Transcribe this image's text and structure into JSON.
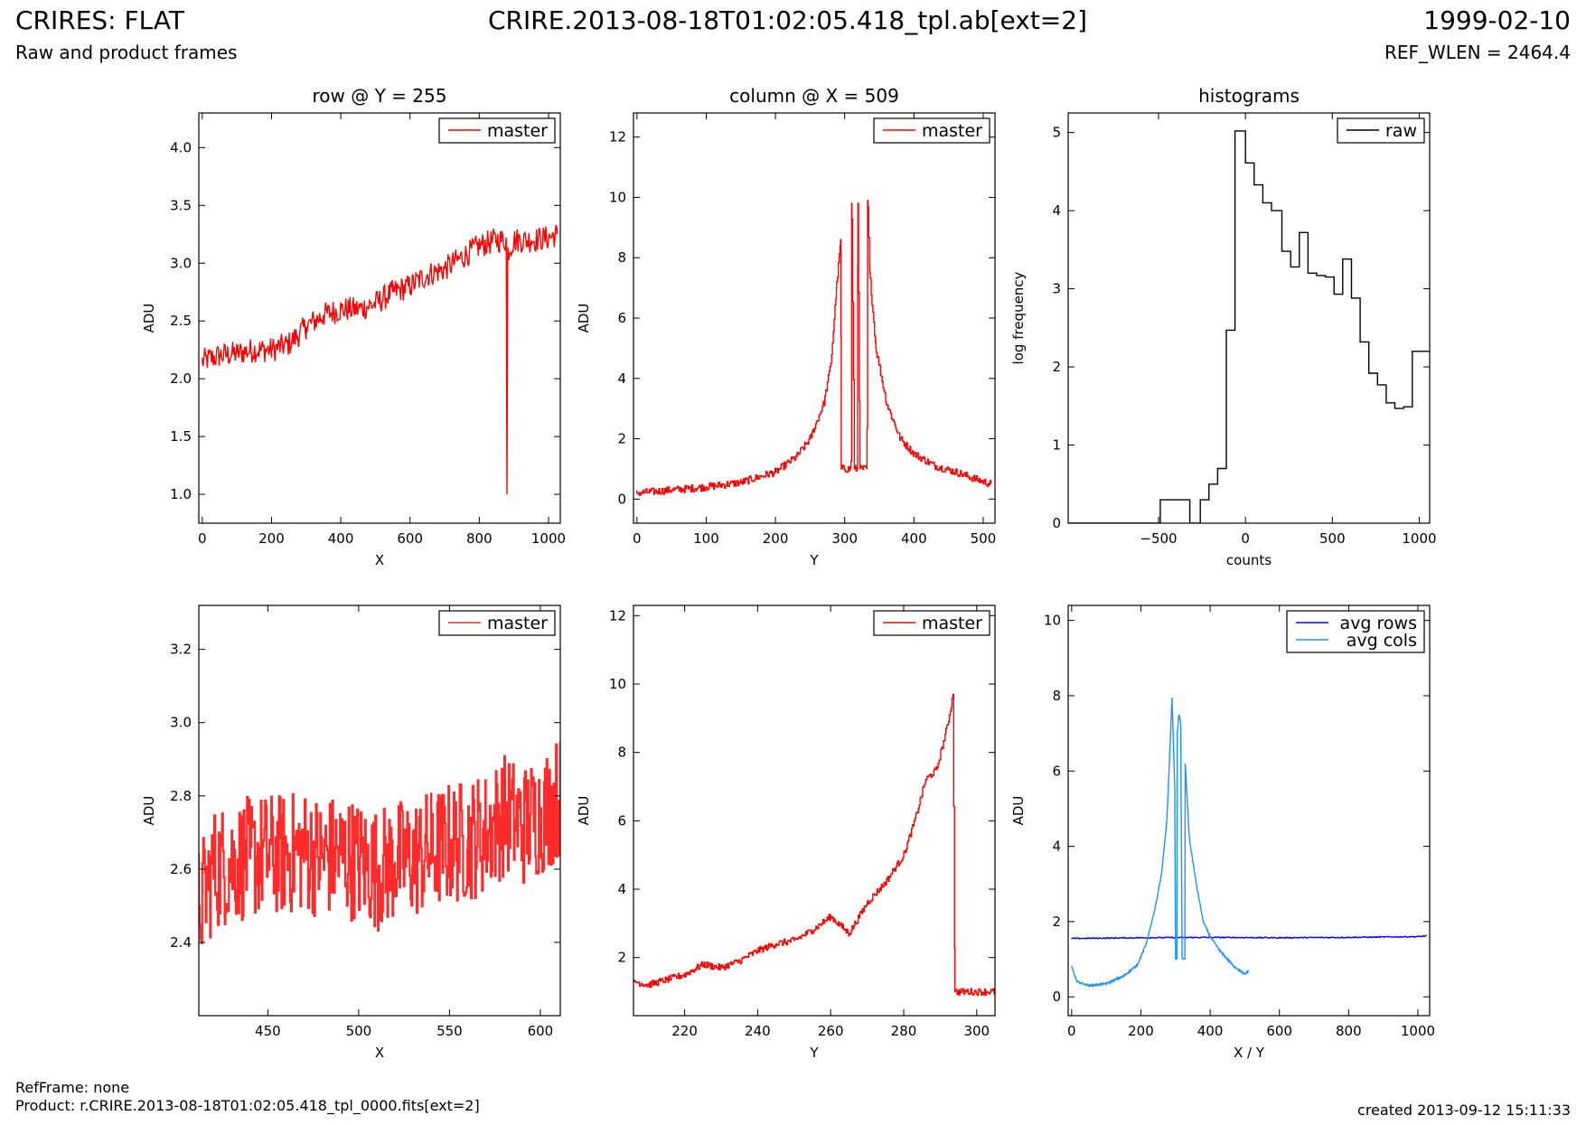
{
  "header": {
    "left_title": "CRIRES: FLAT",
    "left_subtitle": "Raw and product frames",
    "center_title": "CRIRE.2013-08-18T01:02:05.418_tpl.ab[ext=2]",
    "right_title": "1999-02-10",
    "right_subtitle": "REF_WLEN = 2464.4"
  },
  "footer": {
    "ref_frame": "RefFrame: none",
    "product": "Product: r.CRIRE.2013-08-18T01:02:05.418_tpl_0000.fits[ext=2]",
    "created": "created 2013-09-12 15:11:33"
  },
  "colors": {
    "master": "#ff0000",
    "raw": "#000000",
    "avg_rows": "#0000ff",
    "avg_cols": "#1e90ff"
  },
  "chart_data": [
    {
      "type": "line",
      "title": "row @ Y = 255",
      "xlabel": "X",
      "ylabel": "ADU",
      "xlim": [
        -10,
        1034
      ],
      "ylim": [
        0.75,
        4.3
      ],
      "xticks": [
        0,
        200,
        400,
        600,
        800,
        1000
      ],
      "yticks": [
        1.0,
        1.5,
        2.0,
        2.5,
        3.0,
        3.5,
        4.0
      ],
      "yfmt": 1,
      "legend_position": "top-right",
      "series": [
        {
          "name": "master",
          "color": "#ff0000",
          "points": [
            [
              0,
              2.15
            ],
            [
              50,
              2.2
            ],
            [
              100,
              2.22
            ],
            [
              150,
              2.25
            ],
            [
              200,
              2.25
            ],
            [
              250,
              2.3
            ],
            [
              300,
              2.45
            ],
            [
              350,
              2.55
            ],
            [
              400,
              2.6
            ],
            [
              450,
              2.6
            ],
            [
              500,
              2.65
            ],
            [
              550,
              2.75
            ],
            [
              600,
              2.8
            ],
            [
              650,
              2.9
            ],
            [
              700,
              2.95
            ],
            [
              750,
              3.05
            ],
            [
              800,
              3.15
            ],
            [
              850,
              3.2
            ],
            [
              878,
              3.2
            ],
            [
              880,
              1.0
            ],
            [
              882,
              3.1
            ],
            [
              900,
              3.2
            ],
            [
              950,
              3.2
            ],
            [
              1000,
              3.22
            ],
            [
              1024,
              3.25
            ]
          ],
          "noise": 0.22
        }
      ]
    },
    {
      "type": "line",
      "title": "column @ X = 509",
      "xlabel": "Y",
      "ylabel": "ADU",
      "xlim": [
        -5,
        517
      ],
      "ylim": [
        -0.8,
        12.8
      ],
      "xticks": [
        0,
        100,
        200,
        300,
        400,
        500
      ],
      "yticks": [
        0,
        2,
        4,
        6,
        8,
        10,
        12
      ],
      "yfmt": 0,
      "legend_position": "top-right",
      "series": [
        {
          "name": "master",
          "color": "#ff0000",
          "step": true,
          "points": [
            [
              0,
              0.2
            ],
            [
              50,
              0.3
            ],
            [
              100,
              0.4
            ],
            [
              150,
              0.55
            ],
            [
              200,
              0.9
            ],
            [
              230,
              1.4
            ],
            [
              250,
              2.0
            ],
            [
              270,
              3.2
            ],
            [
              280,
              4.5
            ],
            [
              288,
              7.0
            ],
            [
              294,
              8.6
            ],
            [
              295,
              1.0
            ],
            [
              309,
              1.0
            ],
            [
              310,
              9.8
            ],
            [
              314,
              1.0
            ],
            [
              318,
              1.0
            ],
            [
              319,
              9.8
            ],
            [
              322,
              1.0
            ],
            [
              332,
              1.0
            ],
            [
              333,
              9.9
            ],
            [
              336,
              7.5
            ],
            [
              345,
              5.0
            ],
            [
              360,
              3.2
            ],
            [
              380,
              2.0
            ],
            [
              400,
              1.5
            ],
            [
              430,
              1.1
            ],
            [
              460,
              0.9
            ],
            [
              490,
              0.65
            ],
            [
              511,
              0.5
            ]
          ],
          "noise": 0.25
        }
      ]
    },
    {
      "type": "line",
      "title": "histograms",
      "xlabel": "counts",
      "ylabel": "log frequency",
      "xlim": [
        -1020,
        1060
      ],
      "ylim": [
        0,
        5.25
      ],
      "xticks": [
        -500,
        0,
        500,
        1000
      ],
      "xtick_labels": [
        "−500",
        "0",
        "500",
        "1000"
      ],
      "yticks": [
        0,
        1,
        2,
        3,
        4,
        5
      ],
      "yfmt": 0,
      "legend_position": "top-right",
      "series": [
        {
          "name": "raw",
          "color": "#000000",
          "step": true,
          "points": [
            [
              -1020,
              0
            ],
            [
              -490,
              0
            ],
            [
              -490,
              0.3
            ],
            [
              -320,
              0.3
            ],
            [
              -320,
              0
            ],
            [
              -260,
              0
            ],
            [
              -260,
              0.3
            ],
            [
              -210,
              0.3
            ],
            [
              -210,
              0.5
            ],
            [
              -160,
              0.5
            ],
            [
              -160,
              0.7
            ],
            [
              -110,
              0.7
            ],
            [
              -110,
              2.47
            ],
            [
              -60,
              2.47
            ],
            [
              -60,
              5.02
            ],
            [
              0,
              5.02
            ],
            [
              0,
              4.61
            ],
            [
              50,
              4.61
            ],
            [
              50,
              4.33
            ],
            [
              100,
              4.33
            ],
            [
              100,
              4.1
            ],
            [
              150,
              4.1
            ],
            [
              150,
              4.0
            ],
            [
              210,
              4.0
            ],
            [
              210,
              3.48
            ],
            [
              260,
              3.48
            ],
            [
              260,
              3.28
            ],
            [
              310,
              3.28
            ],
            [
              310,
              3.72
            ],
            [
              360,
              3.72
            ],
            [
              360,
              3.2
            ],
            [
              410,
              3.2
            ],
            [
              410,
              3.17
            ],
            [
              460,
              3.17
            ],
            [
              460,
              3.15
            ],
            [
              510,
              3.15
            ],
            [
              510,
              2.93
            ],
            [
              560,
              2.93
            ],
            [
              560,
              3.38
            ],
            [
              610,
              3.38
            ],
            [
              610,
              2.88
            ],
            [
              660,
              2.88
            ],
            [
              660,
              2.32
            ],
            [
              710,
              2.32
            ],
            [
              710,
              1.92
            ],
            [
              760,
              1.92
            ],
            [
              760,
              1.77
            ],
            [
              810,
              1.77
            ],
            [
              810,
              1.54
            ],
            [
              860,
              1.54
            ],
            [
              860,
              1.47
            ],
            [
              910,
              1.47
            ],
            [
              910,
              1.49
            ],
            [
              960,
              1.49
            ],
            [
              960,
              2.2
            ],
            [
              1060,
              2.2
            ]
          ]
        }
      ]
    },
    {
      "type": "line",
      "xlabel": "X",
      "ylabel": "ADU",
      "xlim": [
        412,
        611
      ],
      "ylim": [
        2.2,
        3.32
      ],
      "xticks": [
        450,
        500,
        550,
        600
      ],
      "yticks": [
        2.4,
        2.6,
        2.8,
        3.0,
        3.2
      ],
      "yfmt": 1,
      "legend_position": "top-right",
      "series": [
        {
          "name": "master",
          "color": "#ff2a2a",
          "step": true,
          "width": 2.2,
          "points": [
            [
              412,
              2.5
            ],
            [
              420,
              2.6
            ],
            [
              430,
              2.62
            ],
            [
              440,
              2.63
            ],
            [
              450,
              2.64
            ],
            [
              460,
              2.64
            ],
            [
              470,
              2.65
            ],
            [
              480,
              2.63
            ],
            [
              490,
              2.64
            ],
            [
              500,
              2.62
            ],
            [
              510,
              2.6
            ],
            [
              520,
              2.62
            ],
            [
              530,
              2.63
            ],
            [
              540,
              2.65
            ],
            [
              550,
              2.67
            ],
            [
              560,
              2.68
            ],
            [
              570,
              2.7
            ],
            [
              580,
              2.75
            ],
            [
              590,
              2.72
            ],
            [
              600,
              2.75
            ],
            [
              611,
              2.8
            ]
          ],
          "noise": 0.34
        }
      ]
    },
    {
      "type": "line",
      "xlabel": "Y",
      "ylabel": "ADU",
      "xlim": [
        206,
        305
      ],
      "ylim": [
        0.3,
        12.3
      ],
      "xticks": [
        220,
        240,
        260,
        280,
        300
      ],
      "yticks": [
        2,
        4,
        6,
        8,
        10,
        12
      ],
      "yfmt": 0,
      "legend_position": "top-right",
      "series": [
        {
          "name": "master",
          "color": "#ff0000",
          "step": true,
          "points": [
            [
              206,
              1.3
            ],
            [
              210,
              1.2
            ],
            [
              215,
              1.35
            ],
            [
              220,
              1.5
            ],
            [
              225,
              1.8
            ],
            [
              230,
              1.7
            ],
            [
              235,
              1.9
            ],
            [
              240,
              2.2
            ],
            [
              245,
              2.4
            ],
            [
              250,
              2.5
            ],
            [
              255,
              2.8
            ],
            [
              260,
              3.2
            ],
            [
              265,
              2.7
            ],
            [
              270,
              3.6
            ],
            [
              275,
              4.2
            ],
            [
              280,
              5.0
            ],
            [
              283,
              6.0
            ],
            [
              286,
              7.2
            ],
            [
              289,
              7.5
            ],
            [
              292,
              8.8
            ],
            [
              293.5,
              9.7
            ],
            [
              294,
              1.0
            ],
            [
              305,
              1.0
            ]
          ],
          "noise": 0.2
        }
      ]
    },
    {
      "type": "line",
      "xlabel": "X / Y",
      "ylabel": "ADU",
      "xlim": [
        -10,
        1034
      ],
      "ylim": [
        -0.5,
        10.4
      ],
      "xticks": [
        0,
        200,
        400,
        600,
        800,
        1000
      ],
      "yticks": [
        0,
        2,
        4,
        6,
        8,
        10
      ],
      "yfmt": 0,
      "legend_position": "top-right",
      "series": [
        {
          "name": "avg rows",
          "color": "#0000ff",
          "points": [
            [
              0,
              1.55
            ],
            [
              200,
              1.57
            ],
            [
              400,
              1.58
            ],
            [
              600,
              1.57
            ],
            [
              800,
              1.58
            ],
            [
              1000,
              1.6
            ],
            [
              1024,
              1.62
            ]
          ],
          "noise": 0.03
        },
        {
          "name": "avg cols",
          "color": "#1e8fff",
          "points": [
            [
              0,
              0.8
            ],
            [
              15,
              0.4
            ],
            [
              50,
              0.3
            ],
            [
              100,
              0.35
            ],
            [
              150,
              0.55
            ],
            [
              190,
              0.85
            ],
            [
              215,
              1.4
            ],
            [
              240,
              2.3
            ],
            [
              260,
              3.3
            ],
            [
              275,
              4.7
            ],
            [
              285,
              6.8
            ],
            [
              290,
              7.95
            ],
            [
              298,
              5.5
            ],
            [
              300,
              1.0
            ],
            [
              304,
              1.0
            ],
            [
              305,
              7.0
            ],
            [
              310,
              7.5
            ],
            [
              315,
              7.3
            ],
            [
              319,
              1.0
            ],
            [
              327,
              1.0
            ],
            [
              328,
              6.2
            ],
            [
              340,
              4.2
            ],
            [
              360,
              3.0
            ],
            [
              380,
              2.0
            ],
            [
              400,
              1.6
            ],
            [
              430,
              1.2
            ],
            [
              470,
              0.8
            ],
            [
              500,
              0.6
            ],
            [
              511,
              0.7
            ]
          ],
          "noise": 0.05
        }
      ]
    }
  ]
}
